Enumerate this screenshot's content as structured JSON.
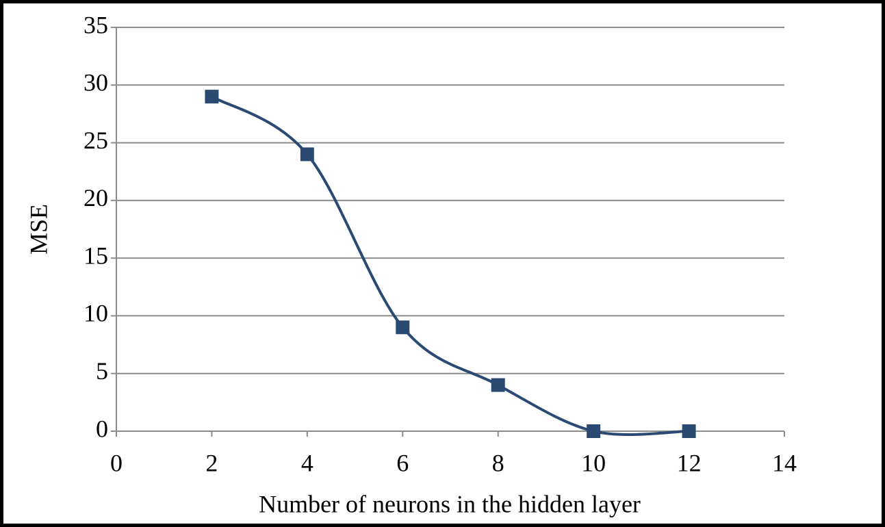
{
  "chart_data": {
    "type": "line",
    "x_label": "Number of neurons in the hidden layer",
    "y_label": "MSE",
    "x": [
      2,
      4,
      6,
      8,
      10,
      12
    ],
    "series": [
      {
        "color": "#2b4a72",
        "values": [
          29,
          24,
          9,
          4,
          0,
          0
        ]
      }
    ],
    "xlim": [
      0,
      14
    ],
    "xticks": [
      0,
      2,
      4,
      6,
      8,
      10,
      12,
      14
    ],
    "ylim": [
      0,
      35
    ],
    "yticks": [
      0,
      5,
      10,
      15,
      20,
      25,
      30,
      35
    ],
    "grid": true,
    "smooth": true,
    "marker": "square"
  }
}
